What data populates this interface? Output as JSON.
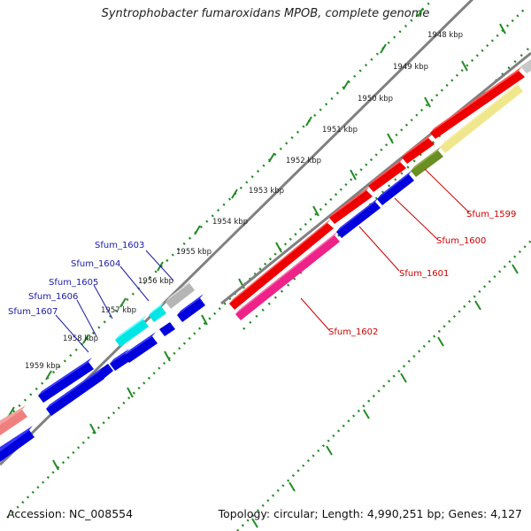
{
  "title": "Syntrophobacter fumaroxidans MPOB, complete genome",
  "footer": {
    "accession": "Accession: NC_008554",
    "summary": "Topology: circular; Length: 4,990,251 bp; Genes: 4,127"
  },
  "kbp_labels": [
    "1948 kbp",
    "1949 kbp",
    "1950 kbp",
    "1951 kbp",
    "1952 kbp",
    "1953 kbp",
    "1954 kbp",
    "1955 kbp",
    "1956 kbp",
    "1957 kbp",
    "1958 kbp",
    "1959 kbp"
  ],
  "gene_labels_right": [
    "Sfum_1599",
    "Sfum_1600",
    "Sfum_1601",
    "Sfum_1602"
  ],
  "gene_labels_left": [
    "Sfum_1603",
    "Sfum_1604",
    "Sfum_1605",
    "Sfum_1606",
    "Sfum_1607"
  ],
  "colors": {
    "red": "#ee0000",
    "blue": "#0000dd",
    "pink": "#ee2288",
    "olive": "#6b8e23",
    "khaki": "#f0e68c",
    "cyan": "#00e5e5",
    "gray": "#b5b5b5",
    "salmon": "#f08080",
    "tick": "#228b22",
    "backbone": "#808080",
    "label_blue": "#1a1aa6",
    "label_red": "#cc0000"
  }
}
